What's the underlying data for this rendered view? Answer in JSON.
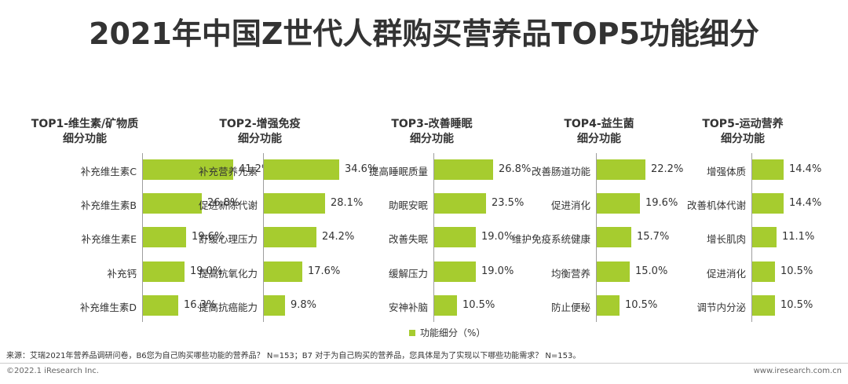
{
  "title": "2021年中国Z世代人群购买营养品TOP5功能细分",
  "colors": {
    "bar": "#a6cc2f",
    "axis": "#9e9e9e",
    "text": "#333333"
  },
  "chart_data": [
    {
      "type": "bar",
      "orientation": "horizontal",
      "title_line1": "TOP1-维生素/矿物质",
      "title_line2": "细分功能",
      "categories": [
        "补充维生素C",
        "补充维生素B",
        "补充维生素E",
        "补充钙",
        "补充维生素D"
      ],
      "values": [
        41.2,
        26.8,
        19.6,
        19.0,
        16.3
      ],
      "labels": [
        "41.2%",
        "26.8%",
        "19.6%",
        "19.0%",
        "16.3%"
      ],
      "unit": "%"
    },
    {
      "type": "bar",
      "orientation": "horizontal",
      "title_line1": "TOP2-增强免疫",
      "title_line2": "细分功能",
      "categories": [
        "补充营养元素",
        "促进新陈代谢",
        "舒缓心理压力",
        "提高抗氧化力",
        "提高抗癌能力"
      ],
      "values": [
        34.6,
        28.1,
        24.2,
        17.6,
        9.8
      ],
      "labels": [
        "34.6%",
        "28.1%",
        "24.2%",
        "17.6%",
        "9.8%"
      ],
      "unit": "%"
    },
    {
      "type": "bar",
      "orientation": "horizontal",
      "title_line1": "TOP3-改善睡眠",
      "title_line2": "细分功能",
      "categories": [
        "提高睡眠质量",
        "助眠安眠",
        "改善失眠",
        "缓解压力",
        "安神补脑"
      ],
      "values": [
        26.8,
        23.5,
        19.0,
        19.0,
        10.5
      ],
      "labels": [
        "26.8%",
        "23.5%",
        "19.0%",
        "19.0%",
        "10.5%"
      ],
      "unit": "%"
    },
    {
      "type": "bar",
      "orientation": "horizontal",
      "title_line1": "TOP4-益生菌",
      "title_line2": "细分功能",
      "categories": [
        "改善肠道功能",
        "促进消化",
        "维护免疫系统健康",
        "均衡营养",
        "防止便秘"
      ],
      "values": [
        22.2,
        19.6,
        15.7,
        15.0,
        10.5
      ],
      "labels": [
        "22.2%",
        "19.6%",
        "15.7%",
        "15.0%",
        "10.5%"
      ],
      "unit": "%"
    },
    {
      "type": "bar",
      "orientation": "horizontal",
      "title_line1": "TOP5-运动营养",
      "title_line2": "细分功能",
      "categories": [
        "增强体质",
        "改善机体代谢",
        "增长肌肉",
        "促进消化",
        "调节内分泌"
      ],
      "values": [
        14.4,
        14.4,
        11.1,
        10.5,
        10.5
      ],
      "labels": [
        "14.4%",
        "14.4%",
        "11.1%",
        "10.5%",
        "10.5%"
      ],
      "unit": "%"
    }
  ],
  "legend": {
    "label": "功能细分（%）"
  },
  "source": "来源：艾瑞2021年营养品调研问卷，B6您为自己购买哪些功能的营养品？ N=153；B7 对于为自己购买的营养品，您具体是为了实现以下哪些功能需求？ N=153。",
  "footer": {
    "left": "©2022.1 iResearch Inc.",
    "right": "www.iresearch.com.cn"
  }
}
